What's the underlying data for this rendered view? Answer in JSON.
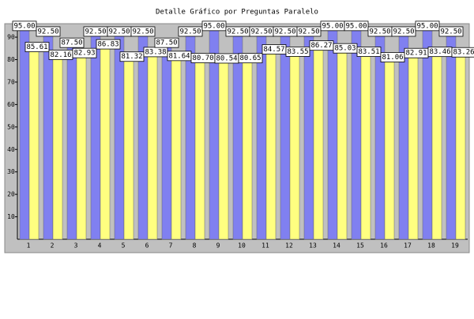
{
  "chart_data": {
    "type": "bar",
    "title": "Detalle Gráfico por Preguntas Paralelo",
    "categories": [
      "1",
      "2",
      "3",
      "4",
      "5",
      "6",
      "7",
      "8",
      "9",
      "10",
      "11",
      "12",
      "13",
      "14",
      "15",
      "16",
      "17",
      "18",
      "19"
    ],
    "series": [
      {
        "color": "#8080f0",
        "values": [
          95,
          92.5,
          87.5,
          92.5,
          92.5,
          92.5,
          87.5,
          92.5,
          95,
          92.5,
          92.5,
          92.5,
          92.5,
          95,
          95,
          92.5,
          92.5,
          95,
          92.5
        ],
        "value_labels": [
          "95.00",
          "92.50",
          "87.50",
          "92.50",
          "92.50",
          "92.50",
          "87.50",
          "92.50",
          "95.00",
          "92.50",
          "92.50",
          "92.50",
          "92.50",
          "95.00",
          "95.00",
          "92.50",
          "92.50",
          "95.00",
          "92.50"
        ]
      },
      {
        "color": "#ffff80",
        "values": [
          85.61,
          82.16,
          82.93,
          86.83,
          81.32,
          83.38,
          81.64,
          80.7,
          80.54,
          80.65,
          84.57,
          83.55,
          86.27,
          85.03,
          83.51,
          81.06,
          82.91,
          83.46,
          83.26
        ],
        "value_labels": [
          "85.61",
          "82.16",
          "82.93",
          "86.83",
          "81.32",
          "83.38",
          "81.64",
          "80.70",
          "80.54",
          "80.65",
          "84.57",
          "83.55",
          "86.27",
          "85.03",
          "83.51",
          "81.06",
          "82.91",
          "83.46",
          "83.26"
        ]
      }
    ],
    "ylim": [
      0,
      96
    ],
    "yticks": [
      10,
      20,
      30,
      40,
      50,
      60,
      70,
      80,
      90
    ]
  }
}
